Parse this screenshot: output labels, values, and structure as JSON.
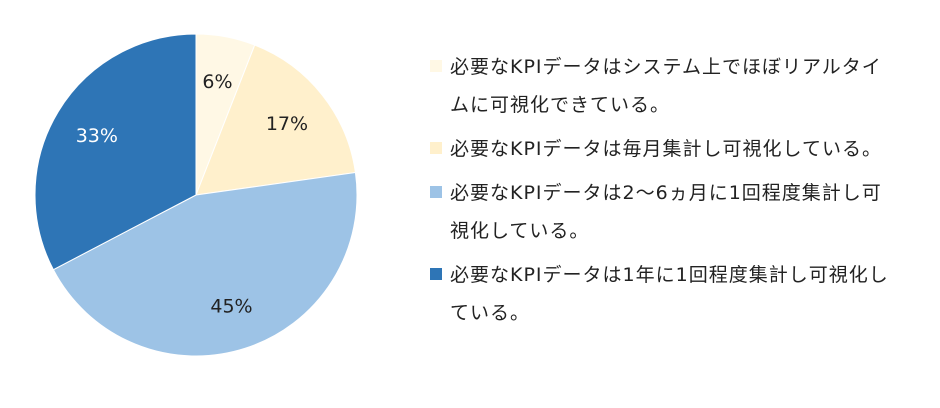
{
  "chart_data": {
    "type": "pie",
    "title": "",
    "start_angle_deg": 0,
    "direction": "clockwise",
    "slices": [
      {
        "label": "必要なKPIデータはシステム上でほぼリアルタイムに可視化できている。",
        "value": 6,
        "display": "6%",
        "color": "#FFF8E5",
        "label_color": "#222222"
      },
      {
        "label": "必要なKPIデータは毎月集計し可視化している。",
        "value": 17,
        "display": "17%",
        "color": "#FFF0CC",
        "label_color": "#222222"
      },
      {
        "label": "必要なKPIデータは2〜6ヵ月に1回程度集計し可視化している。",
        "value": 45,
        "display": "45%",
        "color": "#9DC3E6",
        "label_color": "#222222"
      },
      {
        "label": "必要なKPIデータは1年に1回程度集計し可視化している。",
        "value": 33,
        "display": "33%",
        "color": "#2E75B6",
        "label_color": "#FFFFFF"
      }
    ],
    "legend_position": "right"
  },
  "legend": {
    "items": [
      {
        "label": "必要なKPIデータはシステム上でほぼリアルタイムに可視化できている。",
        "color": "#FFF8E5"
      },
      {
        "label": "必要なKPIデータは毎月集計し可視化している。",
        "color": "#FFF0CC"
      },
      {
        "label": "必要なKPIデータは2〜6ヵ月に1回程度集計し可視化している。",
        "color": "#9DC3E6"
      },
      {
        "label": "必要なKPIデータは1年に1回程度集計し可視化している。",
        "color": "#2E75B6"
      }
    ]
  }
}
